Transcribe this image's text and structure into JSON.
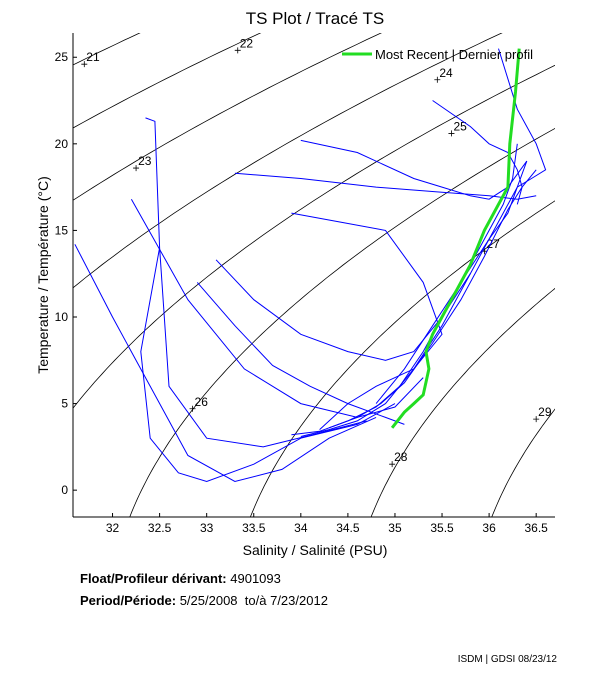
{
  "chart_data": {
    "type": "line",
    "title": "TS Plot / Tracé TS",
    "xlabel": "Salinity / Salinité (PSU)",
    "ylabel": "Temperature / Température (°C)",
    "xlim": [
      31.58,
      36.7
    ],
    "ylim": [
      -1.55,
      26.4
    ],
    "xticks": [
      32,
      32.5,
      33,
      33.5,
      34,
      34.5,
      35,
      35.5,
      36,
      36.5
    ],
    "yticks": [
      0,
      5,
      10,
      15,
      20,
      25
    ],
    "grid": false,
    "legend": {
      "placement": "top-right",
      "entries": [
        "Most Recent | Dernier profil"
      ]
    },
    "density_contours": {
      "levels": [
        21,
        22,
        23,
        24,
        25,
        26,
        27,
        28,
        29
      ],
      "label_positions": [
        {
          "level": 21,
          "s": 31.7,
          "t": 24.6
        },
        {
          "level": 22,
          "s": 33.33,
          "t": 25.4
        },
        {
          "level": 23,
          "s": 32.25,
          "t": 18.6
        },
        {
          "level": 24,
          "s": 35.45,
          "t": 23.7
        },
        {
          "level": 25,
          "s": 35.6,
          "t": 20.6
        },
        {
          "level": 26,
          "s": 32.85,
          "t": 4.7
        },
        {
          "level": 27,
          "s": 35.95,
          "t": 13.8
        },
        {
          "level": 28,
          "s": 34.97,
          "t": 1.5
        },
        {
          "level": 29,
          "s": 36.5,
          "t": 4.1
        }
      ]
    },
    "series": [
      {
        "name": "Most Recent | Dernier profil",
        "color": "#22dd22",
        "s": [
          36.32,
          36.28,
          36.22,
          36.2,
          36.1,
          35.95,
          35.8,
          35.65,
          35.5,
          35.4,
          35.33,
          35.36,
          35.34,
          35.3,
          35.2,
          35.1,
          34.97
        ],
        "t": [
          25.5,
          23,
          20,
          17.5,
          16.5,
          15,
          13,
          11.5,
          10,
          9,
          8,
          7,
          6.5,
          5.5,
          5,
          4.5,
          3.6
        ]
      },
      {
        "name": "profile",
        "color": "#0000ff",
        "s": [
          36.3,
          36.25,
          36.15,
          35.9,
          35.6,
          35.3,
          35.05,
          34.8,
          34.5,
          34.2,
          33.9
        ],
        "t": [
          20,
          18,
          16.5,
          14,
          11,
          8,
          6,
          4.8,
          4,
          3.4,
          3.2
        ]
      },
      {
        "name": "profile",
        "color": "#0000ff",
        "s": [
          36.4,
          36.3,
          36.1,
          35.8,
          35.5,
          35.2,
          34.9,
          34.6,
          34.3,
          34.0
        ],
        "t": [
          19,
          17.5,
          15.5,
          12.5,
          9.5,
          7,
          5,
          4,
          3.5,
          3.1
        ]
      },
      {
        "name": "profile",
        "color": "#0000ff",
        "s": [
          36.5,
          36.35,
          36.2,
          35.95,
          35.7,
          35.4,
          35.1,
          34.85,
          34.6,
          34.3
        ],
        "t": [
          18.5,
          17.5,
          16.2,
          13.5,
          11,
          8.5,
          6.2,
          5,
          4.2,
          3.6
        ]
      },
      {
        "name": "profile",
        "color": "#0000ff",
        "s": [
          32.5,
          32.3,
          32.4,
          32.7,
          33.0,
          33.5,
          34.0,
          34.6,
          35.0
        ],
        "t": [
          14,
          8,
          3,
          1,
          0.5,
          1.5,
          3,
          3.8,
          5
        ]
      },
      {
        "name": "profile",
        "color": "#0000ff",
        "s": [
          31.6,
          32.0,
          32.4,
          32.8,
          33.3,
          33.8,
          34.3,
          34.8
        ],
        "t": [
          14.2,
          10,
          6,
          2,
          0.5,
          1.2,
          3,
          4.2
        ]
      },
      {
        "name": "profile",
        "color": "#0000ff",
        "s": [
          32.2,
          32.8,
          33.4,
          34.0,
          34.6,
          35.0,
          35.3
        ],
        "t": [
          16.8,
          11,
          7,
          5,
          4.2,
          4.8,
          6.5
        ]
      },
      {
        "name": "profile",
        "color": "#0000ff",
        "s": [
          32.35,
          32.45,
          32.5,
          32.6,
          33.0,
          33.6,
          34.2,
          34.7
        ],
        "t": [
          21.5,
          21.3,
          14,
          6,
          3,
          2.5,
          3.3,
          4
        ]
      },
      {
        "name": "profile",
        "color": "#0000ff",
        "s": [
          34.0,
          34.6,
          35.2,
          35.5,
          35.8,
          36.0,
          36.2,
          36.4
        ],
        "t": [
          20.2,
          19.5,
          18,
          17.5,
          17,
          16.8,
          17.5,
          19
        ]
      },
      {
        "name": "profile",
        "color": "#0000ff",
        "s": [
          33.3,
          34.0,
          34.8,
          35.5,
          36.0,
          36.3,
          36.5
        ],
        "t": [
          18.3,
          18.0,
          17.5,
          17.2,
          17,
          16.8,
          17
        ]
      },
      {
        "name": "profile",
        "color": "#0000ff",
        "s": [
          35.4,
          35.8,
          36.0,
          36.2,
          36.3,
          36.35,
          36.3
        ],
        "t": [
          22.5,
          21,
          20,
          19.5,
          18.5,
          17.5,
          16.5
        ]
      },
      {
        "name": "profile",
        "color": "#0000ff",
        "s": [
          33.9,
          34.4,
          34.9,
          35.3,
          35.5,
          35.2,
          34.8,
          34.5,
          34.2
        ],
        "t": [
          16,
          15.5,
          15,
          12,
          9,
          7,
          6,
          5,
          3.5
        ]
      },
      {
        "name": "profile",
        "color": "#0000ff",
        "s": [
          33.1,
          33.5,
          34.0,
          34.5,
          34.9,
          35.2,
          35.5,
          35.8
        ],
        "t": [
          13.3,
          11,
          9,
          8,
          7.5,
          8,
          10,
          12.5
        ]
      },
      {
        "name": "profile",
        "color": "#0000ff",
        "s": [
          32.9,
          33.3,
          33.7,
          34.1,
          34.5,
          34.9,
          35.1
        ],
        "t": [
          12,
          9.5,
          7.2,
          6,
          5,
          4.2,
          3.8
        ]
      },
      {
        "name": "profile",
        "color": "#0000ff",
        "s": [
          36.1,
          36.3,
          36.5,
          36.6,
          36.45,
          36.3,
          36.2,
          36.0,
          35.7,
          35.4,
          35.1,
          34.8
        ],
        "t": [
          25.5,
          22,
          20,
          18.5,
          18,
          17.5,
          16,
          14.5,
          12,
          9.5,
          7,
          5
        ]
      }
    ]
  },
  "info": {
    "float_label": "Float/Profileur dérivant:",
    "float_id": "4901093",
    "period_label": "Period/Période:",
    "period_start": "5/25/2008",
    "period_sep": "to/à",
    "period_end": "7/23/2012"
  },
  "footer": "ISDM | GDSI 08/23/12"
}
